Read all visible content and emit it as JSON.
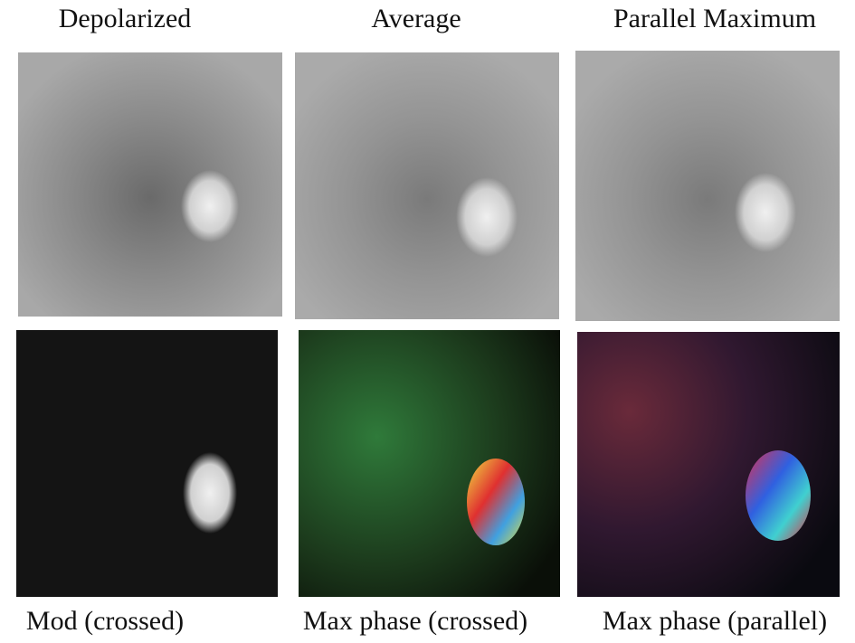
{
  "figure": {
    "panels": [
      {
        "label": "Depolarized"
      },
      {
        "label": "Average"
      },
      {
        "label": "Parallel Maximum"
      },
      {
        "label": "Mod (crossed)"
      },
      {
        "label": "Max phase (crossed)"
      },
      {
        "label": "Max phase (parallel)"
      }
    ]
  }
}
